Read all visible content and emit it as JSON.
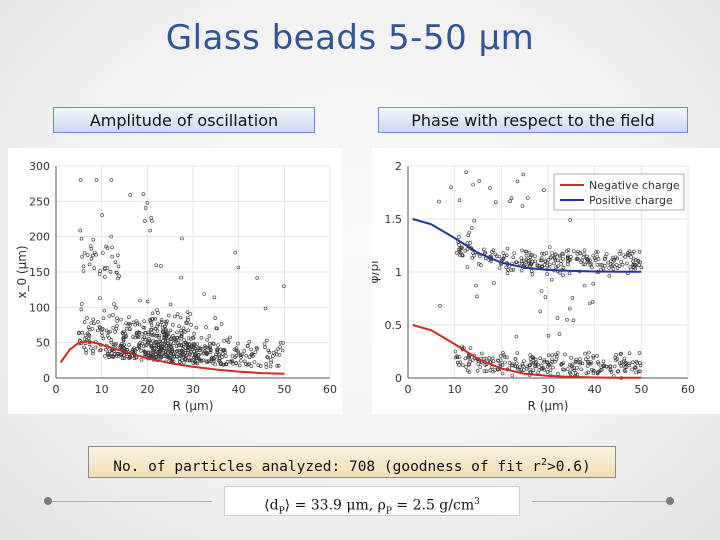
{
  "title": "Glass beads 5-50 μm",
  "headers": {
    "left": "Amplitude of oscillation",
    "right": "Phase with respect to the field"
  },
  "info": {
    "prefix": "No. of particles analyzed: 708 (goodness of fit r",
    "sup": "2",
    "suffix": ">0.6)"
  },
  "formula": {
    "mean_open": "⟨d",
    "mean_sub": "P",
    "mean_close": "⟩ = 33.9 μm,  ρ",
    "rho_sub": "P",
    "rho_rest": " = 2.5 g/cm",
    "unit_sup": "3"
  },
  "colors": {
    "title": "#2f5597",
    "negative": "#cc2a24",
    "positive": "#23349b",
    "points": "#333333"
  },
  "chart_data": [
    {
      "type": "scatter",
      "panel": "left",
      "title": "",
      "xlabel": "R (μm)",
      "ylabel": "x_0 (μm)",
      "xlim": [
        0,
        60
      ],
      "ylim": [
        0,
        300
      ],
      "xticks": [
        0,
        10,
        20,
        30,
        40,
        50,
        60
      ],
      "yticks": [
        0,
        50,
        100,
        150,
        200,
        250,
        300
      ],
      "scatter": {
        "n": 708,
        "seed": 7,
        "x_range": [
          5,
          50
        ],
        "x_peak": 22,
        "y_floor": 0,
        "y_mode": 25,
        "y_spread": 60,
        "y_max": 280
      },
      "series": [
        {
          "name": "fit",
          "color": "#cc2a24",
          "x": [
            1,
            3,
            5,
            7,
            9,
            12,
            15,
            20,
            25,
            30,
            35,
            40,
            45,
            50
          ],
          "y": [
            22,
            40,
            50,
            52,
            49,
            43,
            37,
            28,
            21,
            16,
            12,
            9,
            7,
            6
          ]
        }
      ]
    },
    {
      "type": "scatter",
      "panel": "right",
      "title": "",
      "xlabel": "R (μm)",
      "ylabel": "ϕ/pi",
      "xlim": [
        0,
        60
      ],
      "ylim": [
        0,
        2
      ],
      "xticks": [
        0,
        10,
        20,
        30,
        40,
        50,
        60
      ],
      "yticks": [
        0,
        0.5,
        1,
        1.5,
        2
      ],
      "legend": {
        "position": "top-right",
        "entries": [
          "Negative charge",
          "Positive charge"
        ]
      },
      "series": [
        {
          "name": "Negative charge",
          "color": "#cc2a24",
          "x": [
            1,
            5,
            10,
            15,
            20,
            25,
            30,
            35,
            40,
            45,
            50
          ],
          "y": [
            0.5,
            0.45,
            0.32,
            0.18,
            0.09,
            0.04,
            0.02,
            0.01,
            0.005,
            0.003,
            0.002
          ]
        },
        {
          "name": "Positive charge",
          "color": "#23349b",
          "x": [
            1,
            5,
            10,
            15,
            20,
            25,
            30,
            35,
            40,
            45,
            50
          ],
          "y": [
            1.5,
            1.45,
            1.32,
            1.18,
            1.09,
            1.04,
            1.02,
            1.01,
            1.005,
            1.003,
            1.002
          ]
        }
      ],
      "scatter_bands": [
        {
          "x_range": [
            10,
            50
          ],
          "y_center": 1.1,
          "y_spread": 0.09,
          "n": 260,
          "seed": 11
        },
        {
          "x_range": [
            10,
            50
          ],
          "y_center": 0.12,
          "y_spread": 0.09,
          "n": 260,
          "seed": 23
        },
        {
          "x_range": [
            5,
            42
          ],
          "y_center": 1.65,
          "y_spread": 0.25,
          "n": 22,
          "seed": 31
        },
        {
          "x_range": [
            6,
            40
          ],
          "y_center": 0.7,
          "y_spread": 0.25,
          "n": 20,
          "seed": 41
        }
      ]
    }
  ]
}
